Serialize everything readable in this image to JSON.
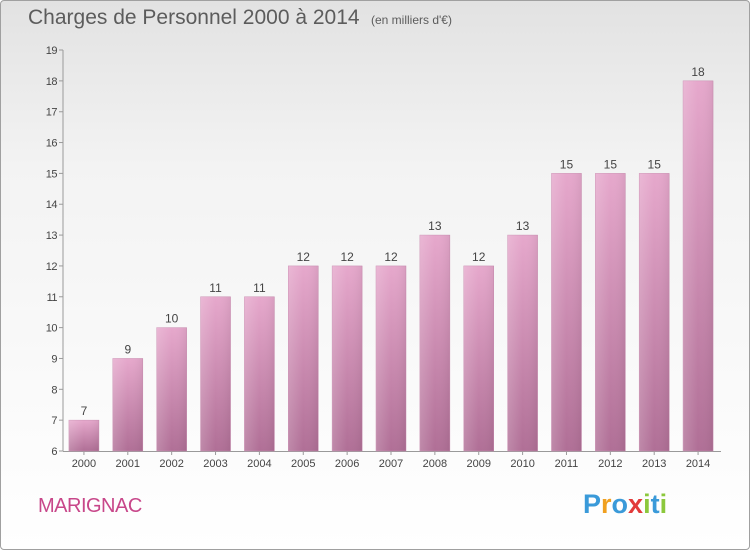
{
  "title": "Charges de Personnel 2000 à 2014",
  "subtitle": "(en milliers d'€)",
  "commune": "MARIGNAC",
  "logo": {
    "text": "Proxiti",
    "letters": [
      {
        "ch": "P",
        "color": "#3a9ad9"
      },
      {
        "ch": "r",
        "color": "#f0a020"
      },
      {
        "ch": "o",
        "color": "#3a9ad9"
      },
      {
        "ch": "x",
        "color": "#e23a3a"
      },
      {
        "ch": "i",
        "color": "#8cc83c"
      },
      {
        "ch": "t",
        "color": "#3a9ad9"
      },
      {
        "ch": "i",
        "color": "#8cc83c"
      }
    ]
  },
  "chart_data": {
    "type": "bar",
    "categories": [
      "2000",
      "2001",
      "2002",
      "2003",
      "2004",
      "2005",
      "2006",
      "2007",
      "2008",
      "2009",
      "2010",
      "2011",
      "2012",
      "2013",
      "2014"
    ],
    "values": [
      7,
      9,
      10,
      11,
      11,
      12,
      12,
      12,
      13,
      12,
      13,
      15,
      15,
      15,
      18
    ],
    "ylim": [
      6,
      19
    ],
    "yticks": [
      6,
      7,
      8,
      9,
      10,
      11,
      12,
      13,
      14,
      15,
      16,
      17,
      18,
      19
    ],
    "bar_color_top": "#e6a8cc",
    "bar_color_bottom": "#b06f96",
    "grid": false,
    "legend": "none"
  }
}
